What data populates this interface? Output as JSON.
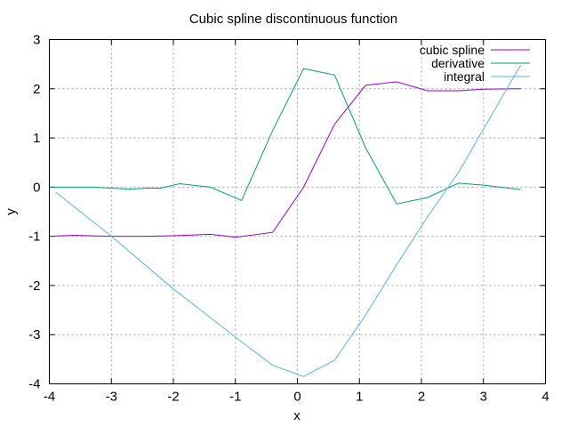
{
  "chart_data": {
    "type": "line",
    "title": "Cubic spline discontinuous function",
    "xlabel": "x",
    "ylabel": "y",
    "xlim": [
      -4,
      4
    ],
    "ylim": [
      -4,
      3
    ],
    "xticks": [
      -4,
      -3,
      -2,
      -1,
      0,
      1,
      2,
      3,
      4
    ],
    "yticks": [
      -4,
      -3,
      -2,
      -1,
      0,
      1,
      2,
      3
    ],
    "grid": true,
    "legend_position": "top-right",
    "series": [
      {
        "name": "cubic spline",
        "color": "#9400d3",
        "x": [
          -4.0,
          -3.6,
          -3.3,
          -3.0,
          -2.7,
          -2.4,
          -2.1,
          -1.8,
          -1.4,
          -1.0,
          -0.4,
          0.1,
          0.6,
          1.1,
          1.6,
          2.1,
          2.6,
          3.0,
          3.6
        ],
        "y": [
          -1.0,
          -0.98,
          -0.99,
          -1.0,
          -1.0,
          -1.0,
          -0.99,
          -0.98,
          -0.96,
          -1.02,
          -0.92,
          0.0,
          1.28,
          2.07,
          2.14,
          1.96,
          1.96,
          1.99,
          2.0
        ]
      },
      {
        "name": "derivative",
        "color": "#009e73",
        "x": [
          -4.0,
          -3.6,
          -3.3,
          -3.0,
          -2.7,
          -2.4,
          -2.2,
          -1.9,
          -1.4,
          -0.9,
          -0.4,
          0.1,
          0.6,
          1.1,
          1.6,
          2.1,
          2.6,
          3.0,
          3.6
        ],
        "y": [
          0.0,
          0.0,
          0.0,
          -0.02,
          -0.04,
          -0.02,
          -0.02,
          0.07,
          0.0,
          -0.27,
          1.15,
          2.41,
          2.28,
          0.8,
          -0.34,
          -0.21,
          0.08,
          0.04,
          -0.05
        ]
      },
      {
        "name": "integral",
        "color": "#56b4e9",
        "x": [
          -3.9,
          -3.0,
          -2.0,
          -1.0,
          -0.4,
          0.1,
          0.6,
          1.1,
          1.6,
          2.1,
          2.6,
          3.0,
          3.6
        ],
        "y": [
          -0.1,
          -1.0,
          -2.07,
          -3.05,
          -3.62,
          -3.85,
          -3.52,
          -2.6,
          -1.58,
          -0.6,
          0.3,
          1.18,
          2.48
        ]
      }
    ]
  }
}
